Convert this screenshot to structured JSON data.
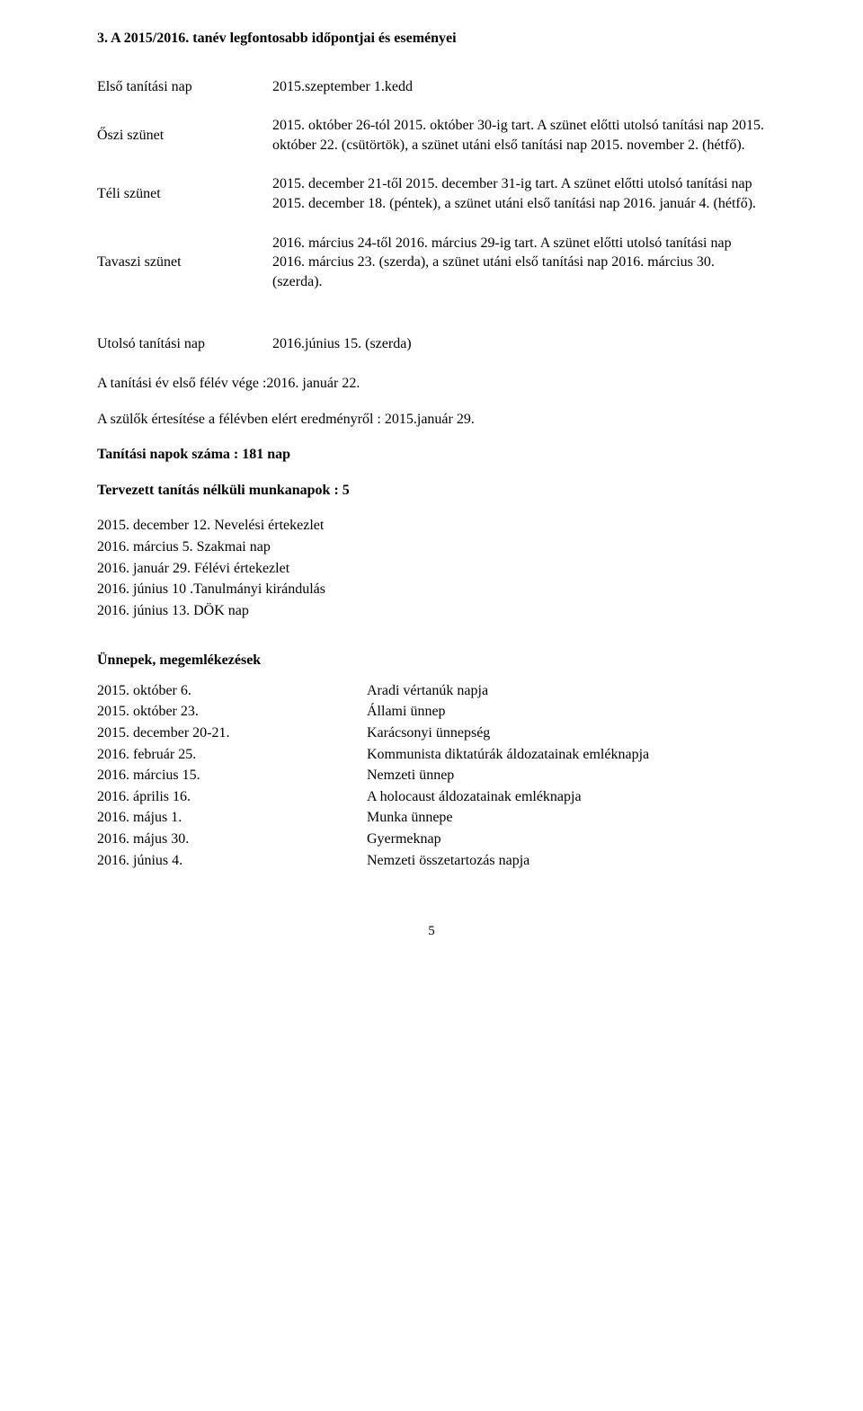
{
  "title": "3. A 2015/2016. tanév legfontosabb időpontjai és eseményei",
  "rows": {
    "first_day": {
      "label": "Első tanítási nap",
      "value": "2015.szeptember 1.kedd"
    },
    "autumn": {
      "label": "Őszi szünet",
      "value": "2015. október 26-tól 2015. október 30-ig tart. A szünet előtti utolsó tanítási nap 2015. október 22. (csütörtök), a szünet utáni első tanítási nap 2015. november 2. (hétfő)."
    },
    "winter": {
      "label": "Téli szünet",
      "value": "2015. december 21-től 2015. december 31-ig tart. A szünet előtti utolsó tanítási nap 2015. december 18. (péntek), a szünet utáni első tanítási nap 2016. január 4. (hétfő)."
    },
    "spring": {
      "label": "Tavaszi szünet",
      "value": "2016. március 24-től 2016. március 29-ig tart. A szünet előtti utolsó tanítási nap 2016. március 23. (szerda), a szünet utáni első tanítási nap 2016. március 30. (szerda)."
    },
    "last_day": {
      "label": "Utolsó tanítási nap",
      "value": "2016.június 15. (szerda)"
    }
  },
  "half_year": "A tanítási év első félév vége   :2016. január 22.",
  "parent_notice": "A szülők értesítése a félévben elért eredményről : 2015.január 29.",
  "teaching_days": "Tanítási napok száma : 181 nap",
  "planned_heading": "Tervezett tanítás nélküli munkanapok  : 5",
  "planned_items": [
    "2015. december 12.  Nevelési értekezlet",
    "2016. március 5. Szakmai nap",
    "2016. január  29. Félévi értekezlet",
    "2016. június 10 .Tanulmányi kirándulás",
    "2016. június 13. DÖK nap"
  ],
  "holidays_heading": "Ünnepek,  megemlékezések",
  "holidays": [
    {
      "date": "2015. október 6.",
      "name": "Aradi vértanúk napja"
    },
    {
      "date": "2015. október 23.",
      "name": "Állami ünnep"
    },
    {
      "date": "2015. december 20-21.",
      "name": "Karácsonyi ünnepség"
    },
    {
      "date": "2016. február 25.",
      "name": "Kommunista diktatúrák áldozatainak emléknapja"
    },
    {
      "date": "2016. március 15.",
      "name": "Nemzeti ünnep"
    },
    {
      "date": "2016. április 16.",
      "name": "A holocaust áldozatainak emléknapja"
    },
    {
      "date": "2016. május 1.",
      "name": "Munka ünnepe"
    },
    {
      "date": "2016. május 30.",
      "name": "Gyermeknap"
    },
    {
      "date": "2016. június 4.",
      "name": "Nemzeti összetartozás napja"
    }
  ],
  "page_number": "5"
}
